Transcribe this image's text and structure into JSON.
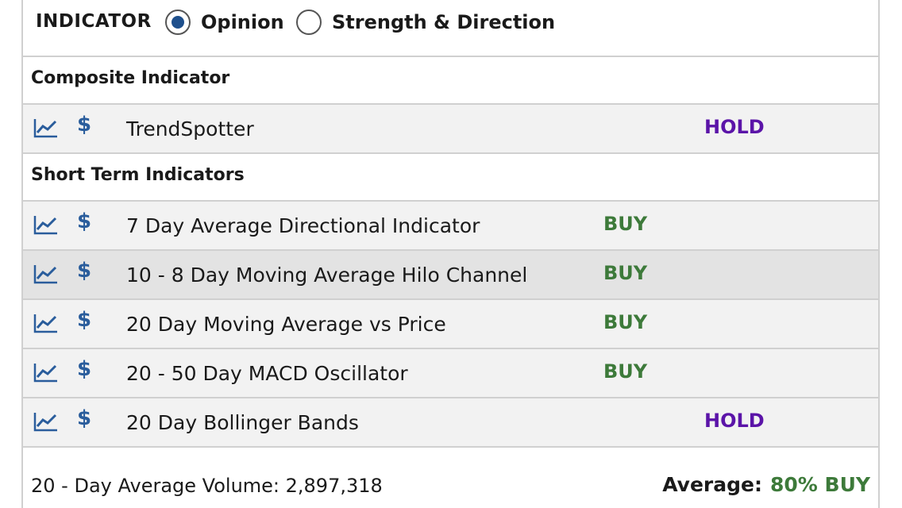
{
  "indicator": {
    "label": "INDICATOR",
    "options": [
      {
        "label": "Opinion",
        "selected": true
      },
      {
        "label": "Strength & Direction",
        "selected": false
      }
    ]
  },
  "sections": [
    {
      "title": "Composite Indicator",
      "rows": [
        {
          "name": "TrendSpotter",
          "signal": "HOLD"
        }
      ]
    },
    {
      "title": "Short Term Indicators",
      "rows": [
        {
          "name": "7 Day Average Directional Indicator",
          "signal": "BUY"
        },
        {
          "name": "10 - 8 Day Moving Average Hilo Channel",
          "signal": "BUY"
        },
        {
          "name": "20 Day Moving Average vs Price",
          "signal": "BUY"
        },
        {
          "name": "20 - 50 Day MACD Oscillator",
          "signal": "BUY"
        },
        {
          "name": "20 Day Bollinger Bands",
          "signal": "HOLD"
        }
      ]
    }
  ],
  "icons": {
    "chart": "chart-line-icon",
    "dollar": "$"
  },
  "footer": {
    "volume": "20 - Day Average Volume: 2,897,318",
    "average_label": "Average:",
    "average_value": "80% BUY"
  },
  "colors": {
    "buy": "#3d7a3a",
    "hold": "#5b14a8",
    "accent": "#1e4f8c"
  }
}
